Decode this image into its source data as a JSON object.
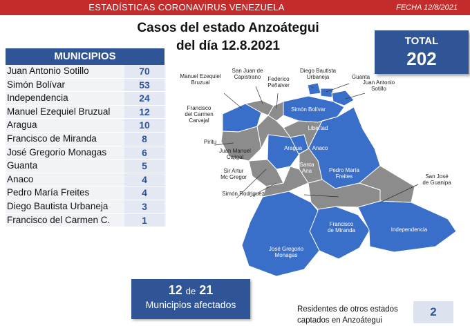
{
  "header": {
    "title": "ESTADÍSTICAS CORONAVIRUS VENEZUELA",
    "date": "FECHA 12/8/2021"
  },
  "main_title": {
    "line1": "Casos del estado Anzoátegui",
    "line2": "del día 12.8.2021"
  },
  "total": {
    "label": "TOTAL",
    "value": "202"
  },
  "municipios": {
    "header": "MUNICIPIOS",
    "rows": [
      {
        "name": "Juan Antonio Sotillo",
        "cases": "70"
      },
      {
        "name": "Simón Bolívar",
        "cases": "53"
      },
      {
        "name": "Independencia",
        "cases": "24"
      },
      {
        "name": "Manuel Ezequiel Bruzual",
        "cases": "12"
      },
      {
        "name": "Aragua",
        "cases": "10"
      },
      {
        "name": "Francisco de Miranda",
        "cases": "8"
      },
      {
        "name": "José Gregorio Monagas",
        "cases": "6"
      },
      {
        "name": "Guanta",
        "cases": "5"
      },
      {
        "name": "Anaco",
        "cases": "4"
      },
      {
        "name": "Pedro María Freites",
        "cases": "4"
      },
      {
        "name": "Diego Bautista Urbaneja",
        "cases": "3"
      },
      {
        "name": "Francisco del Carmen C.",
        "cases": "1"
      }
    ]
  },
  "map_labels": {
    "manuel_ezequiel_bruzual": [
      "Manuel Ezequiel",
      "Bruzual"
    ],
    "san_juan_capistrano": [
      "San Juan de",
      "Capistrano"
    ],
    "federico_penalver": [
      "Federico",
      "Peñalver"
    ],
    "diego_bautista_urbaneja": [
      "Diego Bautista",
      "Urbaneja"
    ],
    "guanta": [
      "Guanta"
    ],
    "juan_antonio_sotillo": [
      "Juan Antonio",
      "Sotillo"
    ],
    "francisco_del_carmen_carvajal": [
      "Francisco",
      "del Carmen",
      "Carvajal"
    ],
    "simon_bolivar": [
      "Simón Bolívar"
    ],
    "libertad": [
      "Libertad"
    ],
    "piritu": [
      "Piritu"
    ],
    "aragua": [
      "Aragua"
    ],
    "anaco": [
      "Anaco"
    ],
    "juan_manuel_cajigal": [
      "Juan Manuel",
      "Cajigal"
    ],
    "santa_ana": [
      "Santa",
      "Ana"
    ],
    "pedro_maria_freites": [
      "Pedro María",
      "Freites"
    ],
    "sir_artur_mc_gregor": [
      "Sir Artur",
      "Mc Gregor"
    ],
    "san_jose_de_guanipa": [
      "San José",
      "de Guanipa"
    ],
    "simon_rodriguez": [
      "Simón Rodriguez"
    ],
    "francisco_de_miranda": [
      "Francisco",
      "de Miranda"
    ],
    "independencia": [
      "Independencia"
    ],
    "jose_gregorio_monagas": [
      "José Gregorio",
      "Monagas"
    ]
  },
  "colors": {
    "affected": "#3a6fc9",
    "not_affected": "#8c8c8c",
    "header_red": "#c42b2b",
    "box_blue": "#2f5597"
  },
  "affected": {
    "count": "12",
    "connector": "de",
    "total": "21",
    "label": "Municipios afectados"
  },
  "residents": {
    "label": "Residentes de otros estados captados en Anzoátegui",
    "value": "2"
  }
}
